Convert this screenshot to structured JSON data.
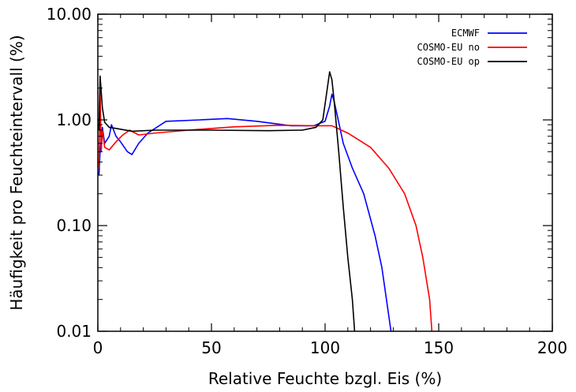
{
  "chart_data": {
    "type": "line",
    "title": "",
    "xlabel": "Relative Feuchte bzgl. Eis (%)",
    "ylabel": "Häufigkeit pro Feuchteintervall (%)",
    "xlim": [
      0,
      200
    ],
    "ylim": [
      0.01,
      10
    ],
    "yscale": "log",
    "grid": false,
    "legend_position": "top-right",
    "x_ticks": [
      {
        "value": 0,
        "label": "0"
      },
      {
        "value": 50,
        "label": "50"
      },
      {
        "value": 100,
        "label": "100"
      },
      {
        "value": 150,
        "label": "150"
      },
      {
        "value": 200,
        "label": "200"
      }
    ],
    "y_ticks": [
      {
        "value": 0.01,
        "label": "0.01"
      },
      {
        "value": 0.1,
        "label": "0.10"
      },
      {
        "value": 1,
        "label": "1.00"
      },
      {
        "value": 10,
        "label": "10.00"
      }
    ],
    "series": [
      {
        "name": "ECMWF",
        "color": "#0000ff",
        "points": [
          [
            0.5,
            0.3
          ],
          [
            1,
            0.5
          ],
          [
            2,
            0.85
          ],
          [
            3,
            0.6
          ],
          [
            5,
            0.7
          ],
          [
            6,
            0.9
          ],
          [
            8,
            0.7
          ],
          [
            10,
            0.62
          ],
          [
            13,
            0.5
          ],
          [
            15,
            0.47
          ],
          [
            18,
            0.6
          ],
          [
            22,
            0.75
          ],
          [
            30,
            0.97
          ],
          [
            45,
            1.0
          ],
          [
            57,
            1.03
          ],
          [
            70,
            0.97
          ],
          [
            85,
            0.88
          ],
          [
            95,
            0.88
          ],
          [
            100,
            0.97
          ],
          [
            102,
            1.35
          ],
          [
            103,
            1.75
          ],
          [
            104,
            1.5
          ],
          [
            106,
            0.95
          ],
          [
            108,
            0.6
          ],
          [
            112,
            0.35
          ],
          [
            117,
            0.2
          ],
          [
            122,
            0.08
          ],
          [
            125,
            0.04
          ],
          [
            127,
            0.02
          ],
          [
            129,
            0.01
          ]
        ]
      },
      {
        "name": "COSMO-EU no",
        "color": "#ff0000",
        "points": [
          [
            0.5,
            0.35
          ],
          [
            1,
            1.8
          ],
          [
            1.5,
            0.5
          ],
          [
            2,
            0.8
          ],
          [
            3,
            0.55
          ],
          [
            5,
            0.52
          ],
          [
            8,
            0.62
          ],
          [
            11,
            0.72
          ],
          [
            14,
            0.8
          ],
          [
            18,
            0.72
          ],
          [
            25,
            0.75
          ],
          [
            40,
            0.8
          ],
          [
            60,
            0.86
          ],
          [
            80,
            0.89
          ],
          [
            95,
            0.88
          ],
          [
            103,
            0.88
          ],
          [
            110,
            0.75
          ],
          [
            120,
            0.55
          ],
          [
            128,
            0.35
          ],
          [
            135,
            0.2
          ],
          [
            140,
            0.1
          ],
          [
            143,
            0.05
          ],
          [
            146,
            0.02
          ],
          [
            147,
            0.01
          ]
        ]
      },
      {
        "name": "COSMO-EU op",
        "color": "#000000",
        "points": [
          [
            0.5,
            0.8
          ],
          [
            1,
            2.6
          ],
          [
            2,
            1.3
          ],
          [
            3,
            0.95
          ],
          [
            5,
            0.85
          ],
          [
            8,
            0.83
          ],
          [
            15,
            0.78
          ],
          [
            25,
            0.8
          ],
          [
            50,
            0.8
          ],
          [
            75,
            0.79
          ],
          [
            90,
            0.8
          ],
          [
            96,
            0.85
          ],
          [
            99,
            1.0
          ],
          [
            101,
            2.0
          ],
          [
            102,
            2.85
          ],
          [
            103,
            2.4
          ],
          [
            104,
            1.5
          ],
          [
            106,
            0.5
          ],
          [
            108,
            0.15
          ],
          [
            110,
            0.05
          ],
          [
            112,
            0.02
          ],
          [
            113,
            0.01
          ]
        ]
      }
    ]
  }
}
